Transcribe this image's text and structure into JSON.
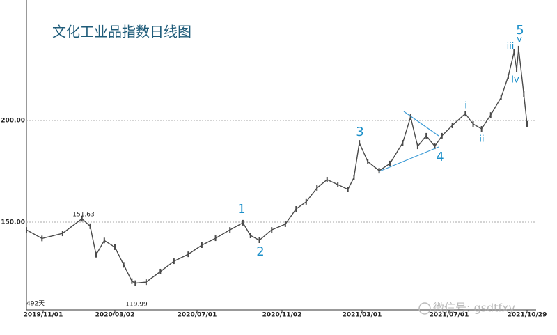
{
  "chart_data": {
    "type": "line",
    "title": "文化工业品指数日线图",
    "x": [
      "2019/10/04",
      "2019/10/30",
      "2019/12/04",
      "2020/01/06",
      "2020/01/20",
      "2020/01/30",
      "2020/02/13",
      "2020/03/02",
      "2020/03/15",
      "2020/03/27",
      "2020/04/01",
      "2020/04/17",
      "2020/05/08",
      "2020/05/28",
      "2020/06/18",
      "2020/07/08",
      "2020/07/28",
      "2020/08/18",
      "2020/09/06",
      "2020/09/17",
      "2020/09/30",
      "2020/10/18",
      "2020/11/07",
      "2020/11/23",
      "2020/12/08",
      "2020/12/24",
      "2021/01/08",
      "2021/01/24",
      "2021/02/08",
      "2021/02/17",
      "2021/02/25",
      "2021/03/09",
      "2021/03/25",
      "2021/04/09",
      "2021/04/27",
      "2021/05/08",
      "2021/05/18",
      "2021/05/30",
      "2021/06/11",
      "2021/06/21",
      "2021/07/06",
      "2021/07/26",
      "2021/08/07",
      "2021/08/20",
      "2021/09/03",
      "2021/09/19",
      "2021/09/30",
      "2021/10/09",
      "2021/10/13",
      "2021/10/16",
      "2021/10/24",
      "2021/10/29"
    ],
    "values": [
      146.2,
      142,
      144.5,
      151.63,
      148,
      134,
      141,
      137.7,
      129,
      121,
      119.99,
      120.5,
      125.7,
      130.8,
      134.2,
      138.7,
      142.1,
      146.2,
      149.7,
      143.5,
      141.1,
      146.2,
      149,
      156.5,
      160,
      166.8,
      170.9,
      168.5,
      166.1,
      172,
      189,
      179.8,
      175.3,
      178.8,
      189,
      201.7,
      187.3,
      192.5,
      187.3,
      192.5,
      197.6,
      203.4,
      198.3,
      195.9,
      202.7,
      211.3,
      221.6,
      233.6,
      225,
      235.3,
      213,
      198.3
    ],
    "color": "#4a4a4a",
    "xlim": [
      "2019/10/04",
      "2021/11/07"
    ],
    "xticks": [
      "2019/11/01",
      "2020/03/02",
      "2020/07/01",
      "2020/11/02",
      "2021/03/01",
      "2021/07/01",
      "2021/10/29"
    ],
    "ylim": [
      106.85,
      259.25
    ],
    "yticks": [
      {
        "value": 200,
        "label": "200.00"
      },
      {
        "value": 150,
        "label": "150.00"
      }
    ],
    "grid": true,
    "annotations": [
      "151.63",
      "119.99",
      "1",
      "2",
      "3",
      "4",
      "5",
      "i",
      "ii",
      "iii",
      "iv",
      "v"
    ],
    "footnote": "492天",
    "watermark": "微信号: gsdtfxy"
  }
}
